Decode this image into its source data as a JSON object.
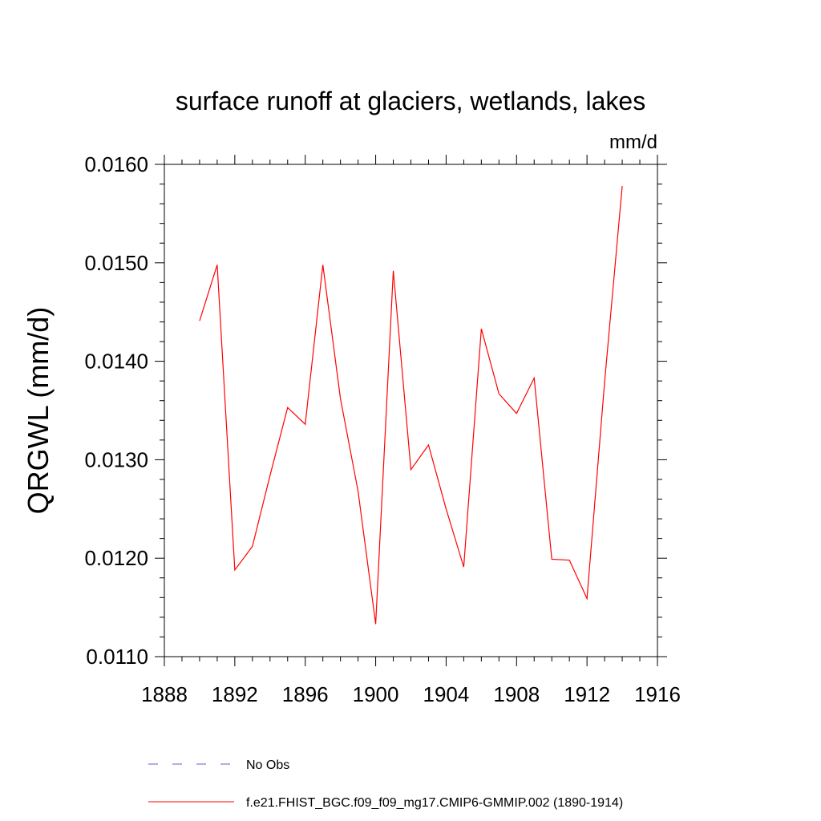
{
  "chart_data": {
    "type": "line",
    "title": "surface runoff at glaciers, wetlands, lakes",
    "units_label": "mm/d",
    "ylabel": "QRGWL  (mm/d)",
    "xlabel": "",
    "xlim": [
      1888,
      1916
    ],
    "ylim": [
      0.011,
      0.016
    ],
    "x_ticks": [
      1888,
      1892,
      1896,
      1900,
      1904,
      1908,
      1912,
      1916
    ],
    "y_ticks": [
      0.011,
      0.012,
      0.013,
      0.014,
      0.015,
      0.016
    ],
    "y_tick_labels": [
      "0.0110",
      "0.0120",
      "0.0130",
      "0.0140",
      "0.0150",
      "0.0160"
    ],
    "grid": false,
    "legend_placement": "bottom",
    "series": [
      {
        "name": "f.e21.FHIST_BGC.f09_f09_mg17.CMIP6-GMMIP.002 (1890-1914)",
        "color": "#ff0000",
        "dash": "solid",
        "x": [
          1890,
          1891,
          1892,
          1893,
          1894,
          1895,
          1896,
          1897,
          1898,
          1899,
          1900,
          1901,
          1902,
          1903,
          1904,
          1905,
          1906,
          1907,
          1908,
          1909,
          1910,
          1911,
          1912,
          1913,
          1914
        ],
        "y": [
          0.01441,
          0.01498,
          0.01188,
          0.01212,
          0.01284,
          0.01353,
          0.01336,
          0.01498,
          0.01362,
          0.01268,
          0.01133,
          0.01492,
          0.0129,
          0.01315,
          0.0125,
          0.01191,
          0.01433,
          0.01367,
          0.01347,
          0.01383,
          0.01199,
          0.01198,
          0.01159,
          0.01379,
          0.01578
        ]
      }
    ],
    "legend": [
      {
        "label": "No Obs",
        "color": "#6a5acd",
        "dash": "dashed"
      },
      {
        "label": "f.e21.FHIST_BGC.f09_f09_mg17.CMIP6-GMMIP.002 (1890-1914)",
        "color": "#ff0000",
        "dash": "solid"
      }
    ]
  }
}
